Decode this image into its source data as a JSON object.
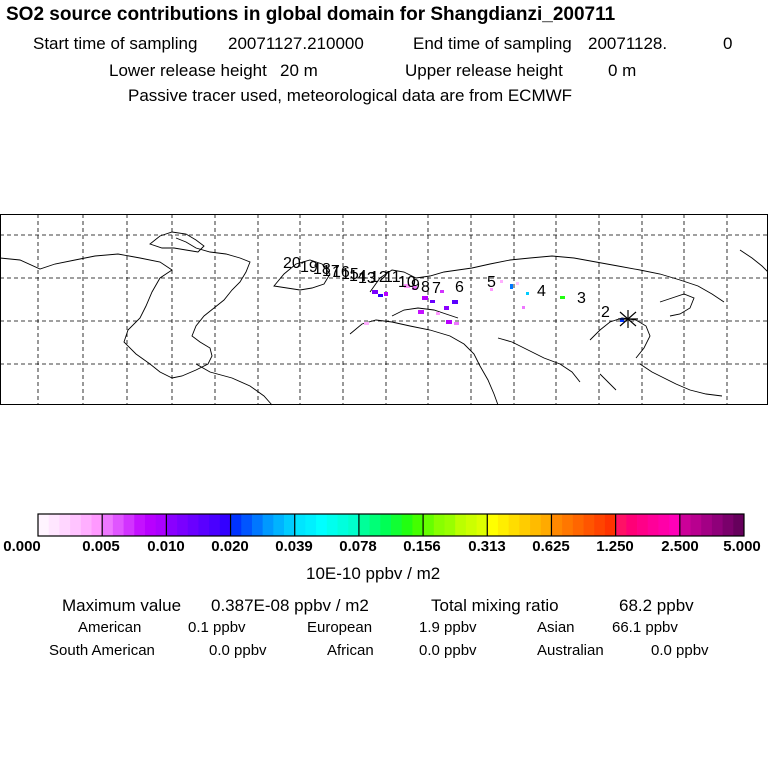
{
  "header": {
    "title": "SO2 source contributions in global domain for Shangdianzi_200711",
    "start_label": "Start time of sampling",
    "start_value": "20071127.210000",
    "end_label": "End time of sampling",
    "end_value": "20071128.",
    "end_extra": "0",
    "lower_label": "Lower release height",
    "lower_value": "20 m",
    "upper_label": "Upper release height",
    "upper_value": "0 m",
    "note": "Passive tracer used, meteorological data are from ECMWF"
  },
  "map": {
    "receptor_marker": "star-marker",
    "trajectory_labels": [
      "20",
      "19",
      "18",
      "17",
      "16",
      "15",
      "14",
      "13",
      "12",
      "11",
      "10",
      "9",
      "8",
      "7",
      "6",
      "5",
      "4",
      "3",
      "2"
    ]
  },
  "colorbar": {
    "ticks": [
      "0.000",
      "0.005",
      "0.010",
      "0.020",
      "0.039",
      "0.078",
      "0.156",
      "0.313",
      "0.625",
      "1.250",
      "2.500",
      "5.000"
    ],
    "unit": "10E-10 ppbv / m2",
    "colors": [
      [
        "#fff4ff",
        "#ffe6ff",
        "#ffd6ff",
        "#ffc4ff",
        "#ffafff",
        "#ff99ff"
      ],
      [
        "#ee77ff",
        "#e055ff",
        "#d233ff",
        "#c411ff",
        "#b800ff",
        "#ab00ff"
      ],
      [
        "#8a00ff",
        "#7a00ff",
        "#6a00ff",
        "#5a00ff",
        "#4a00ff",
        "#3300ff"
      ],
      [
        "#0033ff",
        "#0055ff",
        "#0077ff",
        "#0099ff",
        "#00b3ff",
        "#00ccff"
      ],
      [
        "#00e5ff",
        "#00f0ff",
        "#00ffff",
        "#00ffee",
        "#00ffdd",
        "#00ffcc"
      ],
      [
        "#00ff99",
        "#00ff77",
        "#00ff55",
        "#11ff33",
        "#22ff11",
        "#44ff00"
      ],
      [
        "#66ff00",
        "#88ff00",
        "#99ff00",
        "#bbff00",
        "#ccff00",
        "#ddff00"
      ],
      [
        "#ffff00",
        "#ffee00",
        "#ffdd00",
        "#ffcc00",
        "#ffbb00",
        "#ffaa00"
      ],
      [
        "#ff8800",
        "#ff7700",
        "#ff6600",
        "#ff5500",
        "#ff4400",
        "#ff3300"
      ],
      [
        "#ff1166",
        "#ff0077",
        "#ff0088",
        "#ff0099",
        "#ff00a8",
        "#ff00b8"
      ],
      [
        "#cc0099",
        "#b8008f",
        "#a30085",
        "#8f007a",
        "#7a006b",
        "#66005c"
      ]
    ]
  },
  "stats": {
    "max_label": "Maximum value",
    "max_value": "0.387E-08 ppbv / m2",
    "total_label": "Total mixing ratio",
    "total_value": "68.2 ppbv",
    "regions": [
      {
        "name": "American",
        "value": "0.1 ppbv"
      },
      {
        "name": "European",
        "value": "1.9 ppbv"
      },
      {
        "name": "Asian",
        "value": "66.1 ppbv"
      },
      {
        "name": "South American",
        "value": "0.0 ppbv"
      },
      {
        "name": "African",
        "value": "0.0 ppbv"
      },
      {
        "name": "Australian",
        "value": "0.0 ppbv"
      }
    ]
  }
}
